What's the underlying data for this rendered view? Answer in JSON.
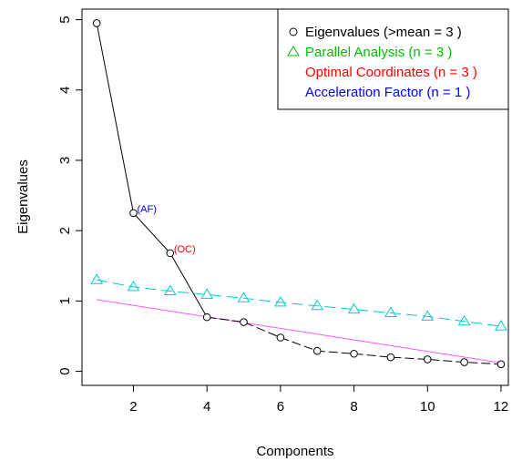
{
  "chart_data": {
    "type": "scatter",
    "title": "",
    "xlabel": "Components",
    "ylabel": "Eigenvalues",
    "xlim": [
      0.6,
      12.2
    ],
    "ylim": [
      -0.2,
      5.15
    ],
    "xticks": [
      2,
      4,
      6,
      8,
      10,
      12
    ],
    "yticks": [
      0,
      1,
      2,
      3,
      4,
      5
    ],
    "x": [
      1,
      2,
      3,
      4,
      5,
      6,
      7,
      8,
      9,
      10,
      11,
      12
    ],
    "series": [
      {
        "key": "eigen",
        "name": "Eigenvalues (>mean  =  3 )",
        "color": "#000000",
        "marker": "circle",
        "line": "solid",
        "values": [
          4.95,
          2.25,
          1.68,
          0.77,
          0.7,
          0.48,
          0.29,
          0.25,
          0.2,
          0.17,
          0.13,
          0.1
        ]
      },
      {
        "key": "parallel",
        "name": "Parallel Analysis (n =  3 )",
        "color": "#00cdcd",
        "legend_color": "#00c000",
        "marker": "triangle",
        "line": "dashed",
        "values": [
          1.3,
          1.2,
          1.14,
          1.09,
          1.04,
          0.98,
          0.93,
          0.88,
          0.83,
          0.78,
          0.71,
          0.64
        ]
      },
      {
        "key": "regression",
        "color": "#ff55ff",
        "marker": "none",
        "line": "solid",
        "x_range": [
          1,
          12
        ],
        "values_at_ends": [
          1.02,
          0.12
        ]
      }
    ],
    "legend_extra": [
      {
        "name": "Optimal Coordinates (n =  3 )",
        "color": "#ff0000"
      },
      {
        "name": "Acceleration Factor (n =  1 )",
        "color": "#0000ff"
      }
    ],
    "annotations": [
      {
        "text": "(AF)",
        "x": 2,
        "y": 2.25,
        "color": "#0000ff"
      },
      {
        "text": "(OC)",
        "x": 3,
        "y": 1.68,
        "color": "#ff0000"
      }
    ],
    "grid": false,
    "legend_position": "top-right"
  }
}
